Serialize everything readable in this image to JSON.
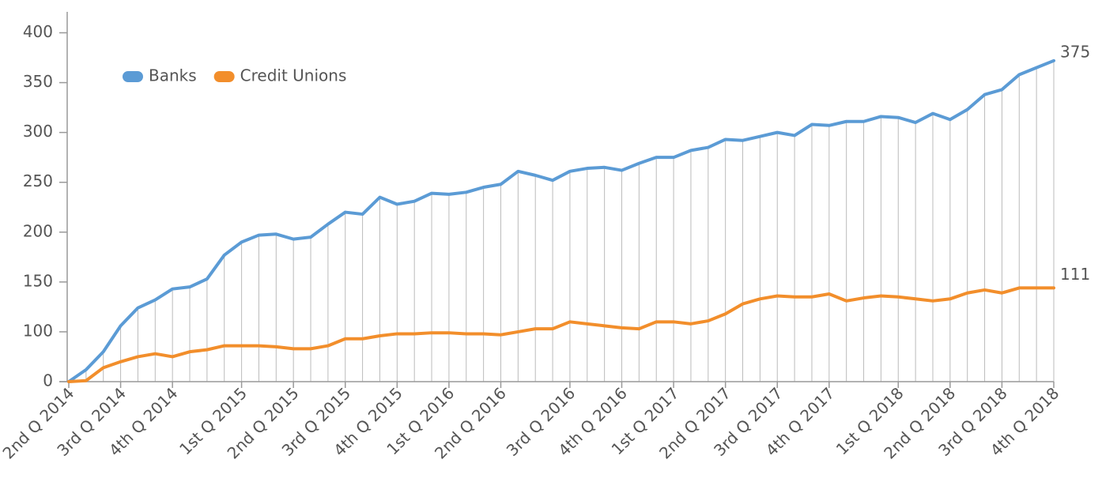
{
  "chart_data": {
    "type": "line",
    "categories": [
      "2nd Q 2014",
      null,
      null,
      "3rd Q 2014",
      null,
      null,
      "4th Q 2014",
      null,
      null,
      null,
      "1st Q 2015",
      null,
      null,
      "2nd Q 2015",
      null,
      null,
      "3rd Q 2015",
      null,
      null,
      "4th Q 2015",
      null,
      null,
      "1st Q 2016",
      null,
      null,
      "2nd Q 2016",
      null,
      null,
      null,
      "3rd Q 2016",
      null,
      null,
      "4th Q 2016",
      null,
      null,
      "1st Q 2017",
      null,
      null,
      "2nd Q 2017",
      null,
      null,
      "3rd Q 2017",
      null,
      null,
      "4th Q 2017",
      null,
      null,
      null,
      "1st Q 2018",
      null,
      null,
      "2nd Q 2018",
      null,
      null,
      "3rd Q 2018",
      null,
      null,
      "4th Q 2018"
    ],
    "series": [
      {
        "name": "Banks",
        "color": "#5b9bd5",
        "values": [
          50,
          62,
          80,
          106,
          124,
          132,
          143,
          145,
          153,
          177,
          190,
          197,
          198,
          193,
          195,
          208,
          220,
          218,
          235,
          228,
          231,
          239,
          238,
          240,
          245,
          248,
          261,
          257,
          252,
          261,
          264,
          265,
          262,
          269,
          275,
          275,
          282,
          285,
          293,
          292,
          296,
          300,
          297,
          308,
          307,
          311,
          311,
          316,
          315,
          310,
          319,
          313,
          323,
          338,
          343,
          358,
          365,
          372
        ]
      },
      {
        "name": "Credit Unions",
        "color": "#f28e2b",
        "values": [
          50,
          51,
          64,
          70,
          75,
          78,
          75,
          80,
          82,
          86,
          86,
          86,
          85,
          83,
          83,
          86,
          93,
          93,
          96,
          98,
          98,
          99,
          99,
          98,
          98,
          97,
          100,
          103,
          103,
          110,
          108,
          106,
          104,
          103,
          110,
          110,
          108,
          111,
          118,
          128,
          133,
          136,
          135,
          135,
          138,
          131,
          134,
          136,
          135,
          133,
          131,
          133,
          139,
          142,
          139,
          144,
          144,
          144
        ]
      }
    ],
    "ylim": [
      50,
      421
    ],
    "yticks": [
      {
        "value": 50,
        "label": "0"
      },
      100,
      150,
      200,
      250,
      300,
      350,
      400
    ],
    "annotations": [
      "375",
      "111"
    ],
    "legend": "upper-left",
    "drop_lines": true
  }
}
